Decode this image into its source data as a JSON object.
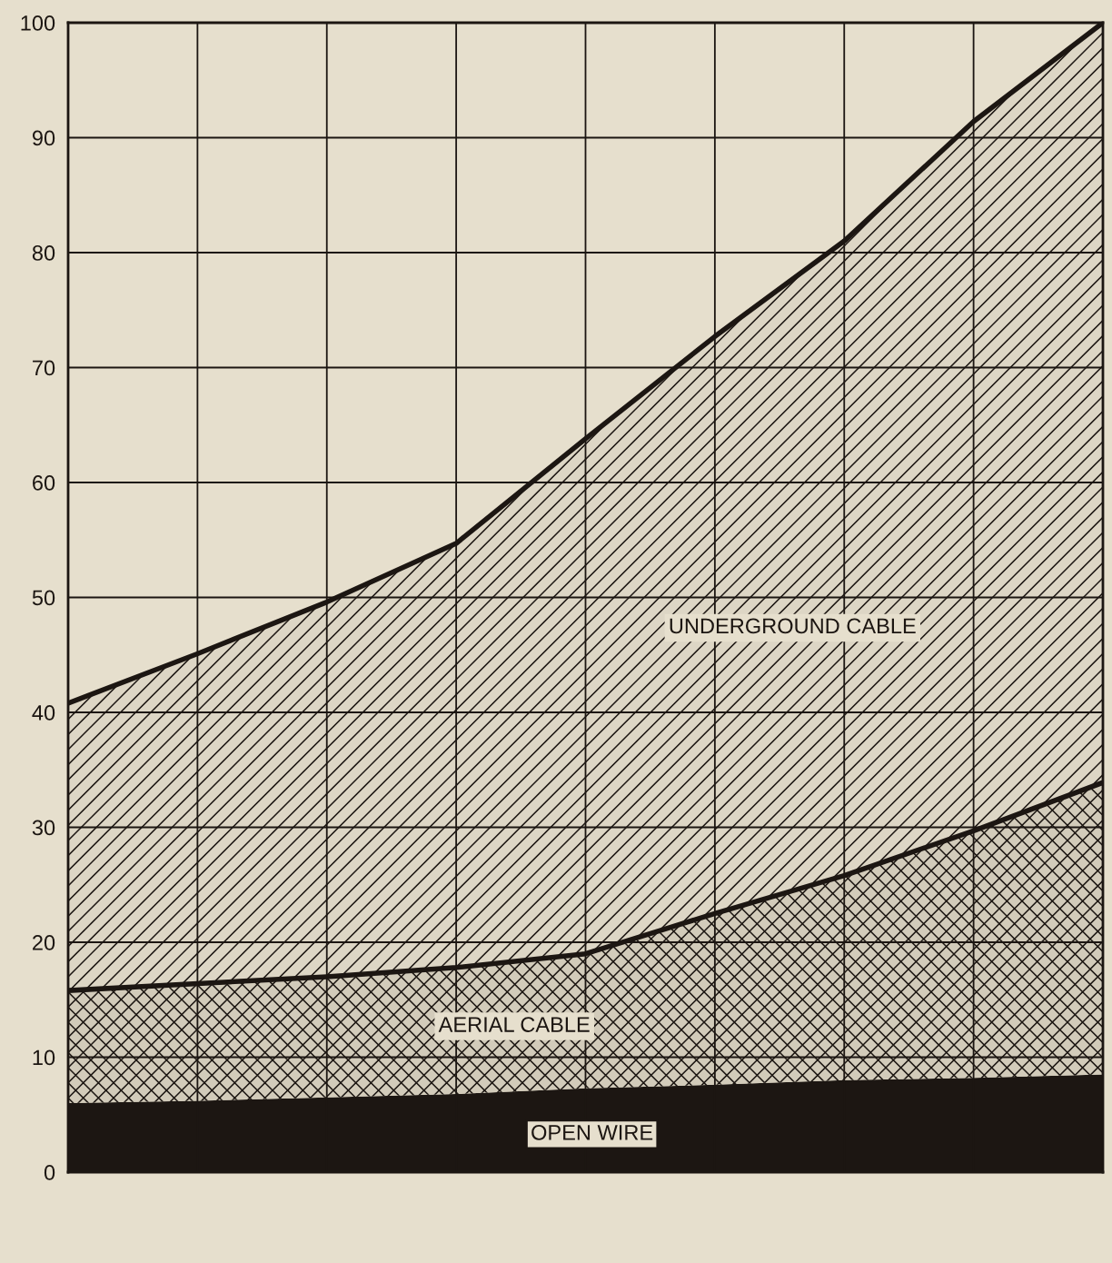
{
  "chart_data": {
    "type": "area",
    "stacked": true,
    "categories": [
      null,
      null,
      null,
      null,
      null,
      null,
      null,
      null,
      null
    ],
    "series": [
      {
        "name": "OPEN WIRE",
        "color": "#1c1612",
        "values": [
          6.0,
          6.2,
          6.5,
          6.8,
          7.3,
          7.6,
          8.0,
          8.2,
          8.5
        ]
      },
      {
        "name": "AERIAL CABLE",
        "color": "#d2cbba",
        "values": [
          9.8,
          10.2,
          10.5,
          11.0,
          11.7,
          14.9,
          17.8,
          21.5,
          25.4
        ]
      },
      {
        "name": "UNDERGROUND CABLE",
        "color": "#ddd6c5",
        "values": [
          25.0,
          28.7,
          32.6,
          36.9,
          44.8,
          50.2,
          55.2,
          61.7,
          66.1
        ]
      }
    ],
    "ylim": [
      0,
      100
    ],
    "yticks": [
      0,
      10,
      20,
      30,
      40,
      50,
      60,
      70,
      80,
      90,
      100
    ],
    "grid": true,
    "tick_labels": "y"
  }
}
